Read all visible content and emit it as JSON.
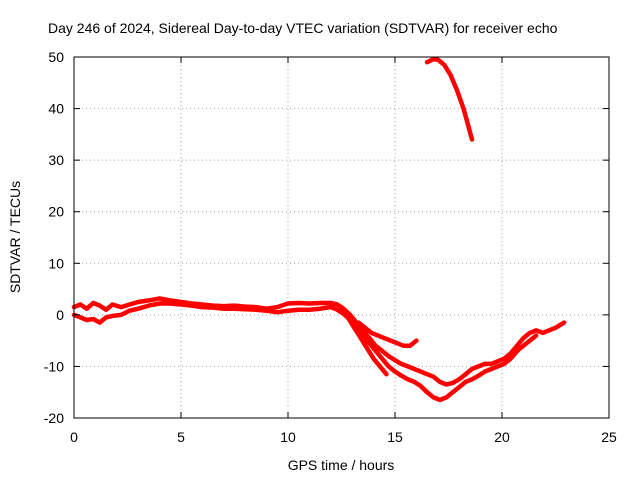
{
  "chart_data": {
    "type": "line",
    "title": "Day 246 of 2024, Sidereal Day-to-day VTEC variation (SDTVAR) for receiver echo",
    "xlabel": "GPS time / hours",
    "ylabel": "SDTVAR / TECUs",
    "xlim": [
      0,
      25
    ],
    "ylim": [
      -20,
      50
    ],
    "xticks": [
      0,
      5,
      10,
      15,
      20,
      25
    ],
    "yticks": [
      -20,
      -10,
      0,
      10,
      20,
      30,
      40,
      50
    ],
    "xtick_labels": [
      "0",
      "5",
      "10",
      "15",
      "20",
      "25"
    ],
    "ytick_labels": [
      "-20",
      "-10",
      "0",
      "10",
      "20",
      "30",
      "40",
      "50"
    ],
    "grid": true,
    "color": "#ff0000",
    "series": [
      {
        "name": "trace-main-upper",
        "x": [
          0,
          0.3,
          0.6,
          0.9,
          1.2,
          1.5,
          1.8,
          2.2,
          2.6,
          3.0,
          3.5,
          4.0,
          4.5,
          5.0,
          5.5,
          6.0,
          6.5,
          7.0,
          7.5,
          8.0,
          8.5,
          9.0,
          9.5,
          10.0,
          10.5,
          11.0,
          11.5,
          12.0,
          12.3,
          12.6,
          12.9,
          13.2,
          13.5,
          13.8,
          14.1,
          14.4,
          14.7,
          15.0,
          15.3,
          15.6,
          15.9,
          16.2,
          16.5,
          16.8,
          17.1,
          17.4,
          17.7,
          18.0,
          18.3,
          18.6,
          18.9,
          19.2,
          19.5,
          19.8,
          20.1,
          20.4,
          20.7,
          21.0,
          21.3,
          21.6,
          21.9,
          22.2,
          22.5,
          22.9
        ],
        "y": [
          1.5,
          2,
          1.2,
          2.3,
          1.8,
          1,
          2,
          1.5,
          2,
          2.5,
          2.8,
          3.2,
          2.8,
          2.5,
          2.2,
          2,
          1.8,
          1.7,
          1.8,
          1.6,
          1.5,
          1.2,
          1.5,
          2.2,
          2.3,
          2.2,
          2.3,
          2.3,
          2,
          1.2,
          0,
          -1.5,
          -3,
          -4.5,
          -6,
          -7,
          -8,
          -8.8,
          -9.5,
          -10,
          -10.5,
          -11,
          -11.5,
          -12,
          -13,
          -13.5,
          -13.2,
          -12.5,
          -11.5,
          -10.5,
          -10,
          -9.5,
          -9.5,
          -9,
          -8.5,
          -7.5,
          -6,
          -4.5,
          -3.5,
          -3,
          -3.5,
          -3,
          -2.5,
          -1.5
        ]
      },
      {
        "name": "trace-main-lower",
        "x": [
          0,
          0.3,
          0.6,
          0.9,
          1.2,
          1.5,
          1.8,
          2.2,
          2.6,
          3.0,
          3.5,
          4.0,
          4.5,
          5.0,
          5.5,
          6.0,
          6.5,
          7.0,
          7.5,
          8.0,
          8.5,
          9.0,
          9.5,
          10.0,
          10.5,
          11.0,
          11.5,
          12.0,
          12.3,
          12.6,
          12.9,
          13.2,
          13.5,
          13.8,
          14.1,
          14.4,
          14.7,
          15.0,
          15.3,
          15.6,
          15.9,
          16.2,
          16.5,
          16.8,
          17.1,
          17.4,
          17.7,
          18.0,
          18.3,
          18.6,
          18.9,
          19.2,
          19.5,
          19.8,
          20.1,
          20.4,
          20.7,
          21.0,
          21.3,
          21.6
        ],
        "y": [
          0,
          -0.5,
          -1,
          -0.8,
          -1.5,
          -0.5,
          -0.2,
          0,
          0.8,
          1.2,
          1.8,
          2.2,
          2.2,
          2,
          1.8,
          1.5,
          1.4,
          1.2,
          1.2,
          1.1,
          1,
          0.8,
          0.5,
          0.8,
          1,
          1,
          1.2,
          1.5,
          1,
          0.2,
          -1,
          -2.5,
          -4,
          -5.5,
          -7,
          -8.5,
          -10,
          -11,
          -11.8,
          -12.5,
          -13,
          -13.8,
          -15,
          -16,
          -16.5,
          -16,
          -15,
          -14,
          -13,
          -12.5,
          -11.8,
          -11,
          -10.5,
          -10,
          -9.5,
          -8.5,
          -7,
          -6,
          -5,
          -4
        ]
      },
      {
        "name": "trace-branch-steep",
        "x": [
          12.5,
          12.8,
          13.1,
          13.4,
          13.7,
          14.0,
          14.3,
          14.6
        ],
        "y": [
          1.5,
          -0.5,
          -2.5,
          -4.5,
          -6.5,
          -8.5,
          -10,
          -11.5
        ]
      },
      {
        "name": "trace-branch-short",
        "x": [
          13.3,
          13.6,
          13.9,
          14.2,
          14.5,
          14.8,
          15.1,
          15.4,
          15.7,
          16.0
        ],
        "y": [
          -1.5,
          -2.5,
          -3.5,
          -4,
          -4.5,
          -5,
          -5.5,
          -6,
          -6,
          -5
        ]
      },
      {
        "name": "trace-high",
        "x": [
          16.5,
          16.8,
          17.0,
          17.3,
          17.6,
          17.9,
          18.2,
          18.4,
          18.6
        ],
        "y": [
          49,
          49.6,
          49.5,
          48.5,
          46.5,
          43.5,
          40,
          37,
          34
        ]
      }
    ]
  }
}
